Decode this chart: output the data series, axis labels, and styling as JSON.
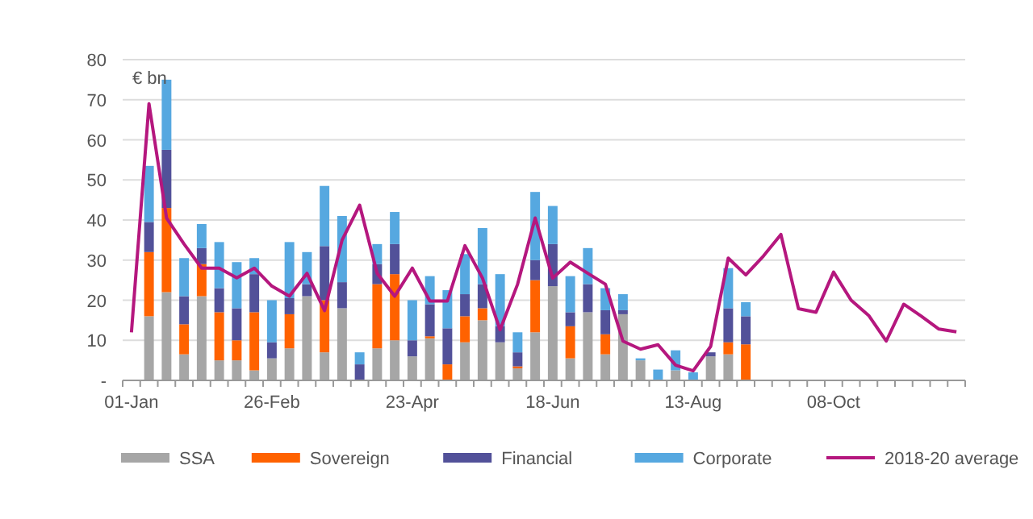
{
  "chart_data": {
    "type": "bar",
    "stacked": true,
    "ylabel": "€ bn",
    "categories": [
      "01-Jan",
      null,
      null,
      null,
      null,
      null,
      null,
      null,
      "26-Feb",
      null,
      null,
      null,
      null,
      null,
      null,
      null,
      "23-Apr",
      null,
      null,
      null,
      null,
      null,
      null,
      null,
      "18-Jun",
      null,
      null,
      null,
      null,
      null,
      null,
      null,
      "13-Aug",
      null,
      null,
      null,
      null,
      null,
      null,
      null,
      "08-Oct",
      null,
      null,
      null,
      null,
      null,
      null,
      null
    ],
    "series": [
      {
        "name": "SSA",
        "color": "#a6a6a6",
        "values": [
          null,
          16,
          22,
          6.5,
          21,
          5,
          5,
          2.5,
          5.5,
          8,
          21,
          7,
          18,
          0,
          8,
          10,
          6,
          10.5,
          0,
          9.5,
          15,
          9.5,
          3,
          12,
          23.5,
          5.5,
          17,
          6.5,
          16.5,
          5,
          0,
          2.5,
          0,
          6,
          6.5,
          0,
          null,
          null,
          null,
          null,
          null,
          null,
          null,
          null,
          null,
          null,
          null,
          null
        ]
      },
      {
        "name": "Sovereign",
        "color": "#ff6200",
        "values": [
          null,
          16,
          21,
          7.5,
          8,
          12,
          5,
          14.5,
          0,
          8.5,
          0,
          13,
          0,
          0,
          16,
          16.5,
          0,
          0.5,
          4,
          6.5,
          3,
          0,
          0.5,
          13,
          0,
          8,
          0,
          5,
          0,
          0,
          0,
          0,
          0,
          0,
          3,
          9,
          null,
          null,
          null,
          null,
          null,
          null,
          null,
          null,
          null,
          null,
          null,
          null
        ]
      },
      {
        "name": "Financial",
        "color": "#525199",
        "values": [
          null,
          7.5,
          14.5,
          7,
          4,
          6,
          8,
          9.5,
          4,
          4,
          3,
          13.5,
          6.5,
          4,
          5,
          7.5,
          4,
          8,
          9,
          5.5,
          6,
          4,
          3.5,
          5,
          10.5,
          3.5,
          7,
          6,
          1,
          0,
          0,
          0,
          0,
          1,
          8.5,
          7,
          null,
          null,
          null,
          null,
          null,
          null,
          null,
          null,
          null,
          null,
          null,
          null
        ]
      },
      {
        "name": "Corporate",
        "color": "#56a8e0",
        "values": [
          null,
          14,
          17.5,
          9.5,
          6,
          11.5,
          11.5,
          4,
          10.5,
          14,
          8,
          15,
          16.5,
          3,
          5,
          8,
          10,
          7,
          9.5,
          10,
          14,
          13,
          5,
          17,
          9.5,
          9,
          9,
          5.5,
          4,
          0.5,
          2.7,
          5,
          2,
          0,
          10,
          3.5,
          null,
          null,
          null,
          null,
          null,
          null,
          null,
          null,
          null,
          null,
          null,
          null
        ]
      },
      {
        "name": "2018-20 average",
        "type": "line",
        "color": "#b5177e",
        "values": [
          12,
          69,
          40.5,
          34,
          28,
          28,
          25.6,
          28,
          23.5,
          21,
          26.7,
          17.4,
          35,
          43.7,
          26.7,
          21,
          28,
          19.8,
          19.8,
          33.6,
          25.5,
          12.6,
          24,
          40.5,
          25.5,
          29.5,
          26.7,
          24,
          9.8,
          7.8,
          8.9,
          3.8,
          2.4,
          8.5,
          30.5,
          26.3,
          31,
          36.4,
          17.9,
          17,
          27,
          20,
          16.2,
          9.8,
          19,
          16,
          12.8,
          12.1
        ]
      }
    ],
    "ylim": [
      0,
      80
    ],
    "yticks": [
      {
        "value": 0,
        "label": "-"
      },
      10,
      20,
      30,
      40,
      50,
      60,
      70,
      80
    ],
    "grid": "y",
    "legend": "bottom"
  }
}
